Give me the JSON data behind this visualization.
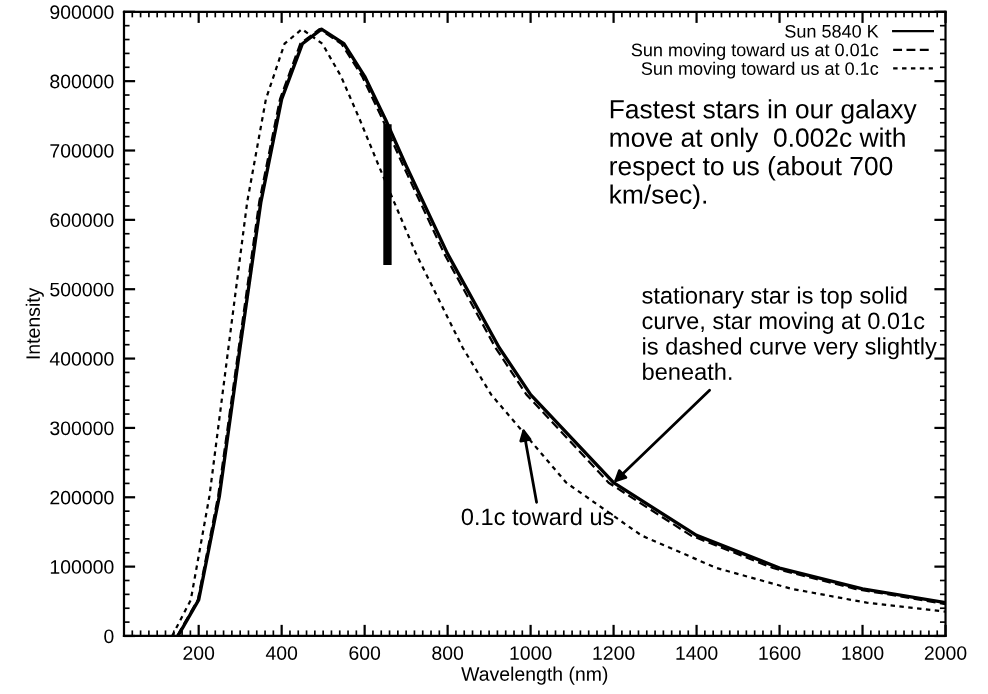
{
  "chart_data": {
    "type": "line",
    "xlabel": "Wavelength (nm)",
    "ylabel": "Intensity",
    "xlim": [
      20,
      2000
    ],
    "xticks": [
      200,
      400,
      600,
      800,
      1000,
      1200,
      1400,
      1600,
      1800,
      2000
    ],
    "ylim": [
      0,
      900000
    ],
    "yticks": [
      0,
      100000,
      200000,
      300000,
      400000,
      500000,
      600000,
      700000,
      800000,
      900000
    ],
    "grid": false,
    "legend": "top right",
    "series": [
      {
        "name": "Sun 5840 K",
        "color": "#000000",
        "line_style": "solid",
        "x": [
          150,
          200,
          250,
          300,
          350,
          400,
          450,
          496,
          550,
          600,
          650,
          700,
          800,
          924,
          1000,
          1200,
          1400,
          1600,
          1800,
          2000
        ],
        "values": [
          0,
          52000,
          202000,
          417000,
          626000,
          774000,
          854000,
          875000,
          854000,
          807000,
          745000,
          678000,
          551000,
          416000,
          348000,
          221000,
          145000,
          98000,
          68000,
          48000
        ]
      },
      {
        "name": "Sun moving toward us at 0.01c",
        "color": "#000000",
        "line_style": "dashed",
        "x": [
          148,
          198,
          247,
          297,
          346,
          396,
          445,
          491,
          544,
          594,
          643,
          693,
          792,
          915,
          990,
          1188,
          1386,
          1584,
          1782,
          1980,
          2000
        ],
        "values": [
          0,
          52000,
          202000,
          417000,
          626000,
          774000,
          854000,
          875000,
          854000,
          807000,
          745000,
          678000,
          551000,
          416000,
          348000,
          221000,
          145000,
          98000,
          68000,
          48000,
          46000
        ]
      },
      {
        "name": "Sun moving toward us at 0.1c",
        "color": "#000000",
        "line_style": "dotted",
        "x": [
          136,
          181,
          226,
          272,
          317,
          362,
          407,
          449,
          498,
          543,
          588,
          634,
          724,
          836,
          905,
          1086,
          1267,
          1448,
          1629,
          1810,
          2000
        ],
        "values": [
          0,
          52000,
          202000,
          417000,
          626000,
          774000,
          854000,
          875000,
          854000,
          807000,
          745000,
          678000,
          551000,
          416000,
          348000,
          221000,
          145000,
          98000,
          68000,
          48000,
          35000
        ]
      },
      {
        "color": "#000000",
        "line_style": "solid",
        "x": [
          655,
          655
        ],
        "values": [
          535000,
          738000
        ]
      }
    ],
    "annotations": [
      "Fastest stars in our galaxy\nmove at only  0.002c with\nrespect to us (about 700\nkm/sec).",
      {
        "text": "stationary star is top solid\ncurve, star moving at 0.01c\nis dashed curve very slightly\nbeneath.",
        "x": 1200,
        "y": 221000
      },
      {
        "text": "0.1c toward us",
        "x": 982,
        "y": 300000
      }
    ]
  }
}
